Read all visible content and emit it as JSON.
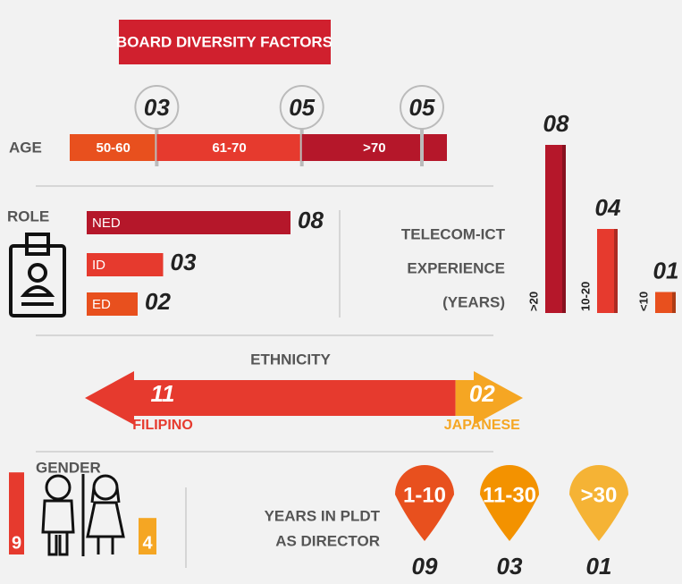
{
  "title": "BOARD DIVERSITY FACTORS",
  "age": {
    "label": "AGE",
    "groups": [
      {
        "name": "50-60",
        "count": {
          "value": 3,
          "label": "03"
        }
      },
      {
        "name": "61-70",
        "count": {
          "value": 5,
          "label": "05"
        }
      },
      {
        "name": ">70",
        "count": {
          "value": 5,
          "label": "05"
        }
      }
    ]
  },
  "role": {
    "label": "ROLE",
    "items": [
      {
        "name": "NED",
        "count": {
          "value": 8,
          "label": "08"
        }
      },
      {
        "name": "ID",
        "count": {
          "value": 3,
          "label": "03"
        }
      },
      {
        "name": "ED",
        "count": {
          "value": 2,
          "label": "02"
        }
      }
    ]
  },
  "telecom": {
    "label": [
      "TELECOM-ICT",
      "EXPERIENCE",
      "(YEARS)"
    ],
    "items": [
      {
        "name": ">20",
        "count": {
          "value": 8,
          "label": "08"
        }
      },
      {
        "name": "10-20",
        "count": {
          "value": 4,
          "label": "04"
        }
      },
      {
        "name": "<10",
        "count": {
          "value": 1,
          "label": "01"
        }
      }
    ]
  },
  "ethnicity": {
    "label": "ETHNICITY",
    "items": [
      {
        "name": "FILIPINO",
        "count": {
          "value": 11,
          "label": "11"
        }
      },
      {
        "name": "JAPANESE",
        "count": {
          "value": 2,
          "label": "02"
        }
      }
    ]
  },
  "gender": {
    "label": "GENDER",
    "items": [
      9,
      4
    ]
  },
  "tenure": {
    "label": [
      "YEARS IN PLDT",
      "AS DIRECTOR"
    ],
    "items": [
      {
        "range": "1-10",
        "count": {
          "value": 9,
          "label": "09"
        }
      },
      {
        "range": "11-30",
        "count": {
          "value": 3,
          "label": "03"
        }
      },
      {
        "range": ">30",
        "count": {
          "value": 1,
          "label": "01"
        }
      }
    ]
  }
}
